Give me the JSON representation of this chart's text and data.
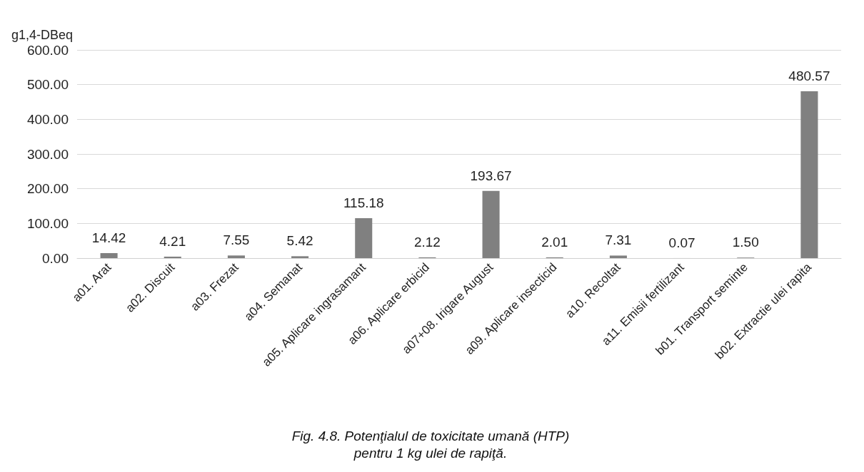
{
  "chart_data": {
    "type": "bar",
    "title": "Fig. 4.8. Potenţialul de toxicitate umană (HTP)\npentru 1 kg ulei de rapiţă.",
    "ylabel": "g1,4-DBeq",
    "categories": [
      "a01. Arat",
      "a02. Discuit",
      "a03. Frezat",
      "a04. Semanat",
      "a05. Aplicare ingrasamant",
      "a06. Aplicare erbicid",
      "a07+08. Irigare August",
      "a09. Aplicare insecticid",
      "a10. Recoltat",
      "a11. Emisii fertilizant",
      "b01. Transport seminte",
      "b02. Extractie ulei rapita"
    ],
    "values": [
      14.42,
      4.21,
      7.55,
      5.42,
      115.18,
      2.12,
      193.67,
      2.01,
      7.31,
      0.07,
      1.5,
      480.57
    ],
    "value_labels": [
      "14.42",
      "4.21",
      "7.55",
      "5.42",
      "115.18",
      "2.12",
      "193.67",
      "2.01",
      "7.31",
      "0.07",
      "1.50",
      "480.57"
    ],
    "color": "#808080",
    "ylim": [
      0,
      600
    ],
    "yticks": [
      {
        "value": 0,
        "label": "0.00"
      },
      {
        "value": 100,
        "label": "100.00"
      },
      {
        "value": 200,
        "label": "200.00"
      },
      {
        "value": 300,
        "label": "300.00"
      },
      {
        "value": 400,
        "label": "400.00"
      },
      {
        "value": 500,
        "label": "500.00"
      },
      {
        "value": 600,
        "label": "600.00"
      }
    ],
    "grid": "y"
  }
}
